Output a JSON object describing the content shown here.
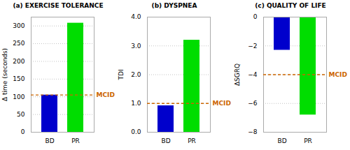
{
  "chart_data": [
    {
      "type": "bar",
      "title": "(a) EXERCISE TOLERANCE",
      "y_label": "Δ time (seconds)",
      "categories": [
        "BD",
        "PR"
      ],
      "values": [
        105,
        308
      ],
      "colors": [
        "#0000cc",
        "#00dd00"
      ],
      "ylim": [
        0,
        325
      ],
      "yticks": [
        0,
        50,
        100,
        150,
        200,
        250,
        300
      ],
      "grid": true,
      "mcid": {
        "value": 105,
        "label": "MCID",
        "color": "#cc6600",
        "line_style": "dashed"
      }
    },
    {
      "type": "bar",
      "title": "(b) DYSPNEA",
      "y_label": "TDI",
      "categories": [
        "BD",
        "PR"
      ],
      "values": [
        0.92,
        3.2
      ],
      "colors": [
        "#0000cc",
        "#00dd00"
      ],
      "ylim": [
        0,
        4
      ],
      "yticks": [
        0,
        1,
        2,
        3,
        4
      ],
      "grid": true,
      "mcid": {
        "value": 1.0,
        "label": "MCID",
        "color": "#cc6600",
        "line_style": "dashed"
      }
    },
    {
      "type": "bar",
      "title": "(c) QUALITY OF LIFE",
      "y_label": "ΔSGRQ",
      "categories": [
        "BD",
        "PR"
      ],
      "values": [
        -2.3,
        -6.8
      ],
      "colors": [
        "#0000cc",
        "#00dd00"
      ],
      "ylim": [
        -8,
        0
      ],
      "yticks": [
        -8,
        -6,
        -4,
        -2,
        0
      ],
      "grid": true,
      "mcid": {
        "value": -4.0,
        "label": "MCID",
        "color": "#cc6600",
        "line_style": "dashed"
      }
    }
  ]
}
